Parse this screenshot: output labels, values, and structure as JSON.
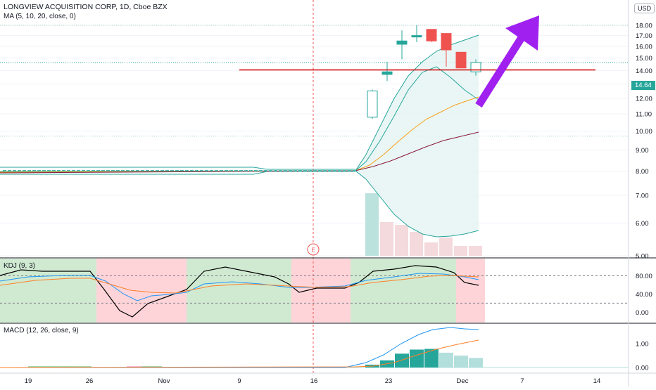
{
  "header": {
    "symbol_line": "LONGVIEW ACQUISITION CORP, 1D, Cboe BZX",
    "ma_line": "MA (5, 10, 20, close, 0)",
    "currency": "USD",
    "last_price": "14.64",
    "earnings_marker": "E"
  },
  "kdj": {
    "title": "KDJ (9, 3)",
    "ticks": [
      "80.00",
      "40.00",
      "0.00"
    ]
  },
  "macd": {
    "title": "MACD (12, 26, close, 9)",
    "ticks": [
      "1.00",
      "0.00"
    ]
  },
  "xaxis": {
    "ticks": [
      "19",
      "26",
      "Nov",
      "9",
      "16",
      "23",
      "Dec",
      "7",
      "14"
    ]
  },
  "colors": {
    "up": "#26a69a",
    "down": "#ef5350",
    "resistance": "#d50000",
    "arrow": "#a020f0",
    "ma5": "#26a69a",
    "ma10": "#f7a21b",
    "ma20": "#8b1a3a",
    "kdj_k": "#000000",
    "kdj_d": "#2196f3",
    "kdj_j": "#ff7f27",
    "bull_zone": "#c8e6c9",
    "bear_zone": "#ffcdd2"
  },
  "chart_data": [
    {
      "type": "candlestick",
      "title": "LONGVIEW ACQUISITION CORP, 1D, Cboe BZX",
      "yticks": [
        "18.00",
        "17.00",
        "16.00",
        "15.00",
        "14.00",
        "13.00",
        "12.00",
        "11.00",
        "10.00",
        "9.00",
        "8.00",
        "7.00",
        "6.00",
        "5.00"
      ],
      "ylim": [
        5,
        18.9
      ],
      "scale": "log",
      "candles_recent": [
        {
          "date": "Nov 20",
          "open": 10.8,
          "high": 12.6,
          "low": 10.7,
          "close": 12.5
        },
        {
          "date": "Nov 23",
          "open": 13.7,
          "high": 14.7,
          "low": 13.2,
          "close": 13.9
        },
        {
          "date": "Nov 24",
          "open": 16.2,
          "high": 17.5,
          "low": 14.9,
          "close": 16.5
        },
        {
          "date": "Nov 25",
          "open": 16.9,
          "high": 18.0,
          "low": 16.4,
          "close": 17.0
        },
        {
          "date": "Nov 27",
          "open": 17.6,
          "high": 17.6,
          "low": 16.4,
          "close": 16.5
        },
        {
          "date": "Nov 30",
          "open": 17.2,
          "high": 17.2,
          "low": 14.3,
          "close": 15.7
        },
        {
          "date": "Dec 1",
          "open": 15.5,
          "high": 15.5,
          "low": 14.2,
          "close": 14.2
        },
        {
          "date": "Dec 2",
          "open": 13.9,
          "high": 14.9,
          "low": 13.6,
          "close": 14.64
        }
      ],
      "last_price": 14.64,
      "resistance_level": 14.05,
      "annotations": [
        "E"
      ]
    },
    {
      "type": "line",
      "title": "KDJ (9, 3)",
      "ylim": [
        -20,
        115
      ],
      "series": [],
      "zones": [
        "bull",
        "bear",
        "bull",
        "bear",
        "bull",
        "bear"
      ]
    },
    {
      "type": "bar",
      "title": "MACD (12, 26, close, 9)",
      "histogram_recent": [
        0.12,
        0.3,
        0.58,
        0.75,
        0.78,
        0.62,
        0.5,
        0.4
      ],
      "macd_peak": 1.6,
      "signal_end": 1.08
    }
  ]
}
